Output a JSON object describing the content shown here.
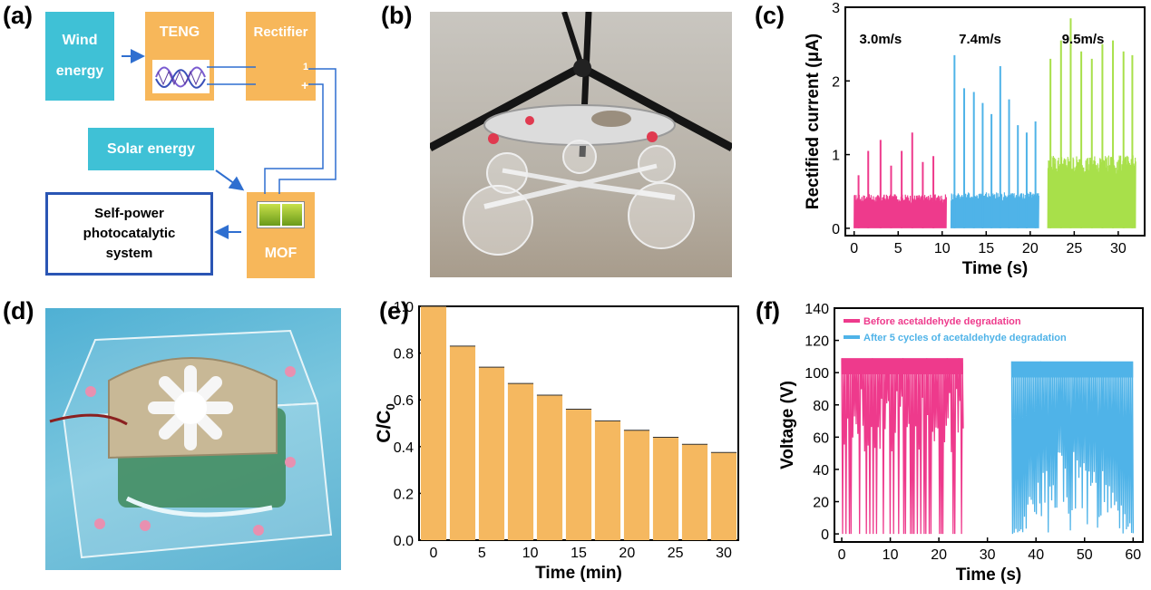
{
  "panels": {
    "a": "(a)",
    "b": "(b)",
    "c": "(c)",
    "d": "(d)",
    "e": "(e)",
    "f": "(f)"
  },
  "diagram": {
    "wind_line1": "Wind",
    "wind_line2": "energy",
    "teng": "TENG",
    "rectifier": "Rectifier",
    "solar": "Solar energy",
    "mof": "MOF",
    "system_line1": "Self-power",
    "system_line2": "photocatalytic",
    "system_line3": "system",
    "rect_minus_top": "1",
    "rect_plus": "+",
    "colors": {
      "teal": "#3fc1d6",
      "orange": "#f7b75a",
      "arrow": "#2f6fd0",
      "frame": "#2a55b4"
    }
  },
  "chart_data": [
    {
      "id": "c",
      "type": "line",
      "xlabel": "Time (s)",
      "ylabel": "Rectified current (μA)",
      "xlim": [
        -1,
        33
      ],
      "ylim": [
        -0.1,
        3.0
      ],
      "xticks": [
        "0",
        "5",
        "10",
        "15",
        "20",
        "25",
        "30"
      ],
      "yticks": [
        "0",
        "1",
        "2",
        "3"
      ],
      "annotations": [
        "3.0m/s",
        "7.4m/s",
        "9.5m/s"
      ],
      "series": [
        {
          "color": "#ee3a8c",
          "x_range": [
            0,
            10.5
          ],
          "base": 0.42,
          "peaks": [
            [
              0.5,
              0.72
            ],
            [
              1.6,
              1.05
            ],
            [
              3.0,
              1.2
            ],
            [
              4.2,
              0.85
            ],
            [
              5.4,
              1.05
            ],
            [
              6.6,
              1.3
            ],
            [
              7.8,
              0.9
            ],
            [
              9.0,
              0.98
            ]
          ]
        },
        {
          "color": "#4fb3e8",
          "x_range": [
            11,
            21
          ],
          "base": 0.45,
          "peaks": [
            [
              11.4,
              2.35
            ],
            [
              12.5,
              1.9
            ],
            [
              13.6,
              1.85
            ],
            [
              14.6,
              1.7
            ],
            [
              15.6,
              1.55
            ],
            [
              16.6,
              2.2
            ],
            [
              17.6,
              1.75
            ],
            [
              18.6,
              1.4
            ],
            [
              19.6,
              1.3
            ],
            [
              20.6,
              1.45
            ]
          ]
        },
        {
          "color": "#a8e04a",
          "x_range": [
            22,
            32
          ],
          "base": 0.9,
          "peaks": [
            [
              22.3,
              2.3
            ],
            [
              23.5,
              2.55
            ],
            [
              24.6,
              2.85
            ],
            [
              25.8,
              2.4
            ],
            [
              27.0,
              2.3
            ],
            [
              28.2,
              2.5
            ],
            [
              29.4,
              2.55
            ],
            [
              30.6,
              2.4
            ],
            [
              31.6,
              2.35
            ]
          ]
        }
      ]
    },
    {
      "id": "e",
      "type": "bar",
      "xlabel": "Time (min)",
      "ylabel": "C/C",
      "ylabel_sub": "0",
      "xlim": [
        -1.5,
        31.5
      ],
      "ylim": [
        0.0,
        1.0
      ],
      "xticks": [
        "0",
        "5",
        "10",
        "15",
        "20",
        "25",
        "30"
      ],
      "yticks": [
        "0.0",
        "0.2",
        "0.4",
        "0.6",
        "0.8",
        "1.0"
      ],
      "color": "#f5b860",
      "x": [
        0,
        3,
        6,
        9,
        12,
        15,
        18,
        21,
        24,
        27,
        30
      ],
      "values": [
        1.0,
        0.83,
        0.74,
        0.67,
        0.62,
        0.56,
        0.51,
        0.47,
        0.44,
        0.41,
        0.375
      ]
    },
    {
      "id": "f",
      "type": "line",
      "xlabel": "Time (s)",
      "ylabel": "Voltage (V)",
      "xlim": [
        -1.5,
        62
      ],
      "ylim": [
        -5,
        140
      ],
      "xticks": [
        "0",
        "10",
        "20",
        "30",
        "40",
        "50",
        "60"
      ],
      "yticks": [
        "0",
        "20",
        "40",
        "60",
        "80",
        "100",
        "120",
        "140"
      ],
      "series": [
        {
          "name": "Before acetaldehyde degradation",
          "color": "#ee3a8c",
          "x_range": [
            0,
            25
          ],
          "top": 109,
          "bottom": 0
        },
        {
          "name": "After 5 cycles of acetaldehyde degradation",
          "color": "#4fb3e8",
          "x_range": [
            35,
            60
          ],
          "top": 107,
          "bottom": 0
        }
      ]
    }
  ]
}
